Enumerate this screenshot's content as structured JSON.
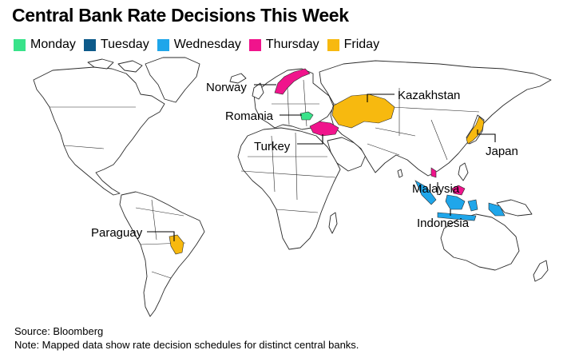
{
  "title": "Central Bank Rate Decisions This Week",
  "legend": [
    {
      "label": "Monday",
      "color": "#39e38a"
    },
    {
      "label": "Tuesday",
      "color": "#0d5a8a"
    },
    {
      "label": "Wednesday",
      "color": "#1fa6ea"
    },
    {
      "label": "Thursday",
      "color": "#f0148c"
    },
    {
      "label": "Friday",
      "color": "#f7b90f"
    }
  ],
  "countries": [
    {
      "name": "Norway",
      "day": "Thursday"
    },
    {
      "name": "Romania",
      "day": "Monday"
    },
    {
      "name": "Turkey",
      "day": "Thursday"
    },
    {
      "name": "Kazakhstan",
      "day": "Friday"
    },
    {
      "name": "Japan",
      "day": "Friday"
    },
    {
      "name": "Malaysia",
      "day": "Thursday"
    },
    {
      "name": "Indonesia",
      "day": "Wednesday"
    },
    {
      "name": "Paraguay",
      "day": "Friday"
    }
  ],
  "source": "Source: Bloomberg",
  "note": "Note: Mapped data show rate decision schedules for distinct central banks."
}
